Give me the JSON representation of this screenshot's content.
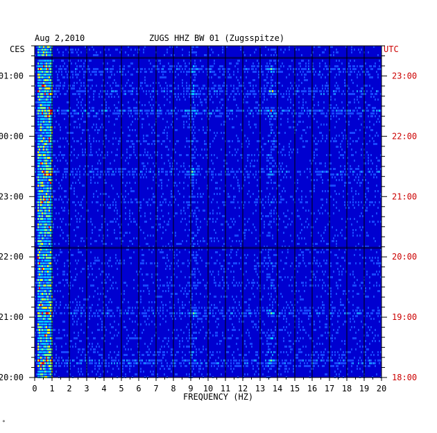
{
  "header": {
    "date": "Aug 2,2010",
    "station": "ZUGS HHZ BW 01 (Zugsspitze)",
    "left_zone": "CES",
    "right_zone": "UTC"
  },
  "chart_data": {
    "type": "heatmap",
    "title": "ZUGS HHZ BW 01 (Zugsspitze)",
    "subtitle": "Aug 2,2010",
    "xlabel": "FREQUENCY (HZ)",
    "ylabel": "",
    "xlim": [
      0,
      20
    ],
    "x_ticks": [
      "0",
      "1",
      "2",
      "3",
      "4",
      "5",
      "6",
      "7",
      "8",
      "9",
      "10",
      "11",
      "12",
      "13",
      "14",
      "15",
      "16",
      "17",
      "18",
      "19",
      "20"
    ],
    "y_ticks_left": [
      "01:00",
      "00:00",
      "23:00",
      "22:00",
      "21:00",
      "20:00"
    ],
    "y_ticks_right": [
      "23:00",
      "22:00",
      "21:00",
      "20:00",
      "19:00",
      "18:00"
    ],
    "y_range_left": [
      "20:00",
      "01:30"
    ],
    "y_range_right": [
      "18:00",
      "23:30"
    ],
    "grid": true,
    "colors": {
      "background": "#0000d0",
      "low": "#0010c0",
      "mid": "#00c8ff",
      "high": "#ffff00",
      "peak": "#ff2000",
      "right_labels": "#cc0000",
      "grid": "#000000"
    },
    "features": {
      "microseism_band_hz": [
        0.2,
        0.6
      ],
      "persistent_lines_hz": [
        9.1,
        13.6
      ],
      "strong_rows_times_left": [
        "01:07",
        "00:45",
        "00:25",
        "23:25",
        "21:05",
        "20:15"
      ]
    }
  }
}
